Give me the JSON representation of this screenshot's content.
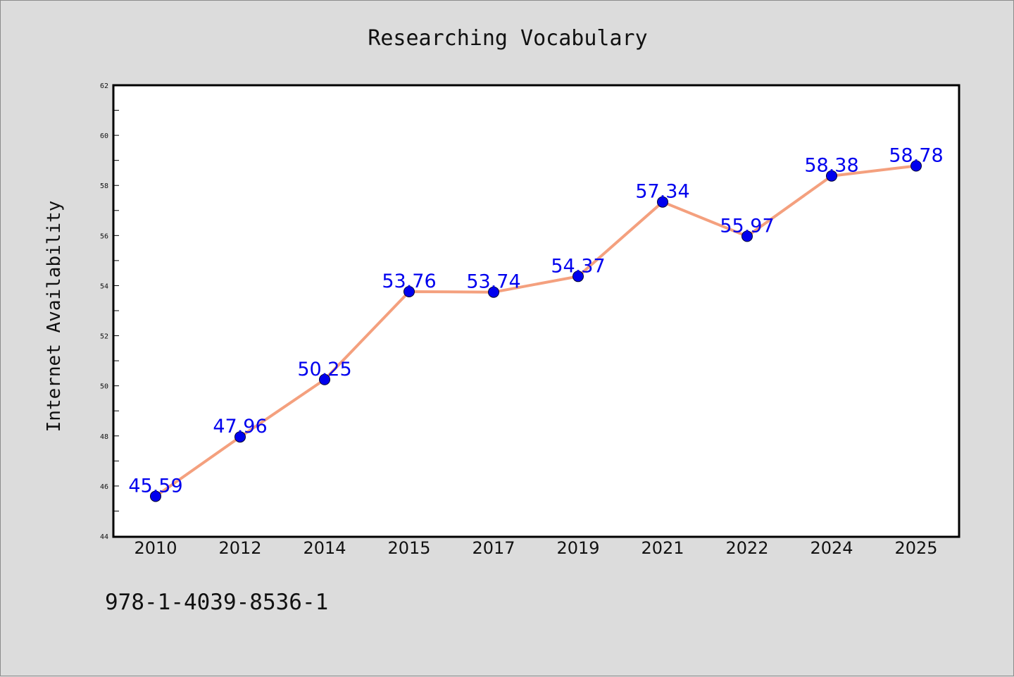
{
  "figure": {
    "footer_text": "978-1-4039-8536-1"
  },
  "chart_data": {
    "type": "line",
    "title": "Researching Vocabulary",
    "xlabel": "",
    "ylabel": "Internet Availability",
    "categories": [
      "2010",
      "2012",
      "2014",
      "2015",
      "2017",
      "2019",
      "2021",
      "2022",
      "2024",
      "2025"
    ],
    "series": [
      {
        "values": [
          45.59,
          47.96,
          50.25,
          53.76,
          53.74,
          54.37,
          57.34,
          55.97,
          58.38,
          58.78
        ]
      }
    ],
    "data_labels": [
      "45.59",
      "47.96",
      "50.25",
      "53.76",
      "53.74",
      "54.37",
      "57.34",
      "55.97",
      "58.38",
      "58.78"
    ],
    "ylim": [
      44,
      62
    ],
    "yticks": [
      "44",
      "46",
      "48",
      "50",
      "52",
      "54",
      "56",
      "58",
      "60",
      "62"
    ],
    "grid": false,
    "legend": "none",
    "colors": {
      "line": "#f4a07e",
      "marker": "#0000ee",
      "data_label": "#0000ee",
      "background": "#dcdcdc",
      "plot_background": "#ffffff"
    }
  }
}
